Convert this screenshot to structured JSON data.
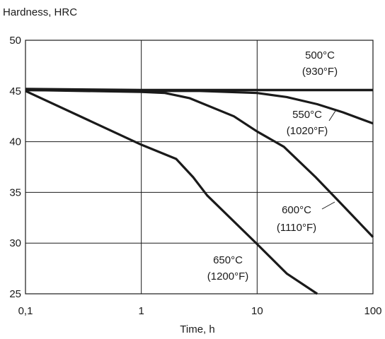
{
  "chart_data": {
    "type": "line",
    "title": "",
    "xlabel": "Time, h",
    "ylabel": "Hardness, HRC",
    "x_scale": "log",
    "xlim": [
      0.1,
      100
    ],
    "ylim": [
      25,
      50
    ],
    "grid": true,
    "x_ticks": [
      {
        "value": 0.1,
        "label": "0,1"
      },
      {
        "value": 1,
        "label": "1"
      },
      {
        "value": 10,
        "label": "10"
      },
      {
        "value": 100,
        "label": "100"
      }
    ],
    "y_ticks": [
      {
        "value": 25,
        "label": "25"
      },
      {
        "value": 30,
        "label": "30"
      },
      {
        "value": 35,
        "label": "35"
      },
      {
        "value": 40,
        "label": "40"
      },
      {
        "value": 45,
        "label": "45"
      },
      {
        "value": 50,
        "label": "50"
      }
    ],
    "series": [
      {
        "label_lines": [
          "500°C",
          "(930°F)"
        ],
        "x": [
          0.1,
          1,
          10,
          100
        ],
        "y": [
          45.2,
          45.1,
          45.1,
          45.1
        ]
      },
      {
        "label_lines": [
          "550°C",
          "(1020°F)"
        ],
        "x": [
          0.1,
          1,
          3.2,
          10,
          18,
          33,
          55,
          100
        ],
        "y": [
          45.1,
          45.0,
          45.0,
          44.8,
          44.4,
          43.7,
          42.9,
          41.8
        ]
      },
      {
        "label_lines": [
          "600°C",
          "(1110°F)"
        ],
        "x": [
          0.1,
          1,
          1.6,
          2.6,
          6.3,
          10,
          17,
          32,
          50,
          100
        ],
        "y": [
          45.1,
          44.9,
          44.8,
          44.3,
          42.5,
          41.0,
          39.5,
          36.5,
          34.2,
          30.6
        ]
      },
      {
        "label_lines": [
          "650°C",
          "(1200°F)"
        ],
        "x": [
          0.1,
          1,
          2,
          2.8,
          3.7,
          10,
          18,
          33
        ],
        "y": [
          45.0,
          39.7,
          38.3,
          36.5,
          34.7,
          29.9,
          27.0,
          25.0
        ]
      }
    ],
    "colors": {
      "line": "#1a1a1a",
      "grid": "#1a1a1a"
    }
  }
}
